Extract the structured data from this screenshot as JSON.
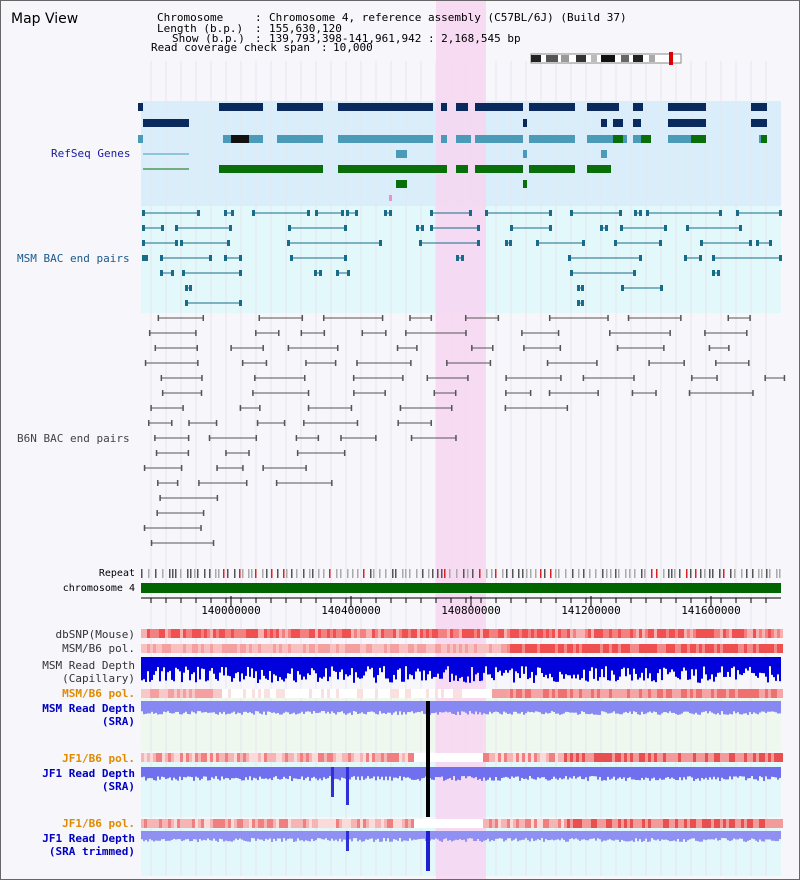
{
  "header": {
    "title": "Map View",
    "chromosome_label": "Chromosome",
    "chromosome_value": "Chromosome 4, reference assembly (C57BL/6J) (Build 37)",
    "length_label": "Length (b.p.)",
    "length_value": "155,630,120",
    "show_label": "Show (b.p.)",
    "show_value": "139,793,398-141,961,942 : 2,168,545 bp",
    "coverage_label": "Read coverage check span",
    "coverage_value": "10,000"
  },
  "tracks": {
    "refseq": "RefSeq Genes",
    "msm_bac": "MSM BAC end pairs",
    "b6n_bac": "B6N BAC end pairs",
    "repeat": "Repeat",
    "chromosome": "chromosome 4",
    "dbsnp": "dbSNP(Mouse)",
    "msm_b6_pol_1": "MSM/B6 pol.",
    "msm_read_depth_cap_1": "MSM Read Depth",
    "msm_read_depth_cap_2": "(Capillary)",
    "msm_b6_pol_2": "MSM/B6 pol.",
    "msm_read_depth_sra_1": "MSM Read Depth",
    "msm_read_depth_sra_2": "(SRA)",
    "jf1_b6_pol_1": "JF1/B6 pol.",
    "jf1_read_depth_sra_1": "JF1 Read Depth",
    "jf1_read_depth_sra_2": "(SRA)",
    "jf1_b6_pol_2": "JF1/B6 pol.",
    "jf1_read_depth_trim_1": "JF1 Read Depth",
    "jf1_read_depth_trim_2": "(SRA trimmed)"
  },
  "ruler": {
    "ticks": [
      "140000000",
      "140400000",
      "140800000",
      "141200000",
      "141600000"
    ]
  },
  "colors": {
    "refseq_bg": "#d9eefa",
    "msm_bg": "#e3f8fa",
    "highlight": "#f7d6f1",
    "gene_dark": "#0a2a5e",
    "gene_teal": "#4a9ab8",
    "gene_green": "#0a6e0a",
    "chromosome": "#006400",
    "read_depth_cap": "#0000e0",
    "read_depth_sra": "#8080f0",
    "snp_red": "#f04040"
  }
}
